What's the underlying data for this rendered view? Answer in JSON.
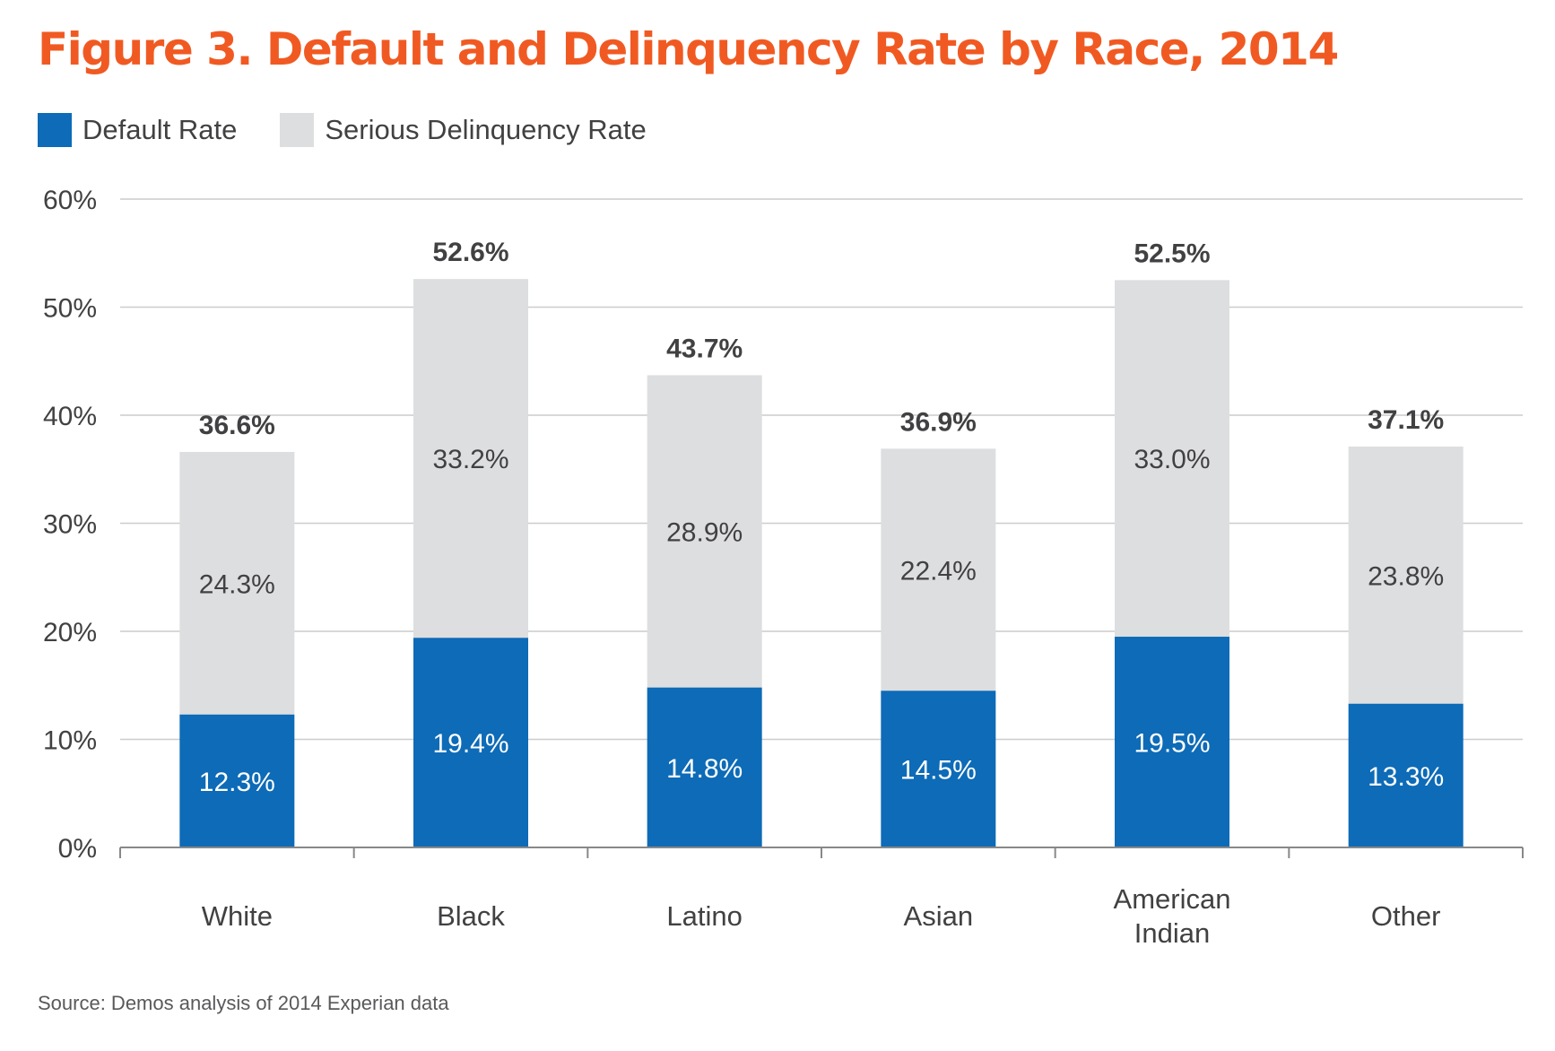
{
  "title": "Figure 3. Default and Delinquency Rate by Race, 2014",
  "source": "Source: Demos analysis of 2014 Experian data",
  "colors": {
    "title": "#F05A22",
    "default": "#0D6BB7",
    "delinquency": "#DDDEDF",
    "grid": "#CCCCCC",
    "axis": "#888888",
    "text": "#414042"
  },
  "legend": [
    {
      "label": "Default Rate",
      "color": "#0D6BB7"
    },
    {
      "label": "Serious Delinquency Rate",
      "color": "#DDDEDF"
    }
  ],
  "chart_data": {
    "type": "bar",
    "stacked": true,
    "title": "Figure 3. Default and Delinquency Rate by Race, 2014",
    "categories": [
      "White",
      "Black",
      "Latino",
      "Asian",
      "American Indian",
      "Other"
    ],
    "category_labels": [
      [
        "White"
      ],
      [
        "Black"
      ],
      [
        "Latino"
      ],
      [
        "Asian"
      ],
      [
        "American",
        "Indian"
      ],
      [
        "Other"
      ]
    ],
    "series": [
      {
        "name": "Default Rate",
        "values": [
          12.3,
          19.4,
          14.8,
          14.5,
          19.5,
          13.3
        ],
        "labels": [
          "12.3%",
          "19.4%",
          "14.8%",
          "14.5%",
          "19.5%",
          "13.3%"
        ]
      },
      {
        "name": "Serious Delinquency Rate",
        "values": [
          24.3,
          33.2,
          28.9,
          22.4,
          33.0,
          23.8
        ],
        "labels": [
          "24.3%",
          "33.2%",
          "28.9%",
          "22.4%",
          "33.0%",
          "23.8%"
        ]
      }
    ],
    "totals": [
      36.6,
      52.6,
      43.7,
      36.9,
      52.5,
      37.1
    ],
    "total_labels": [
      "36.6%",
      "52.6%",
      "43.7%",
      "36.9%",
      "52.5%",
      "37.1%"
    ],
    "ylim": [
      0,
      60
    ],
    "yticks": [
      0,
      10,
      20,
      30,
      40,
      50,
      60
    ],
    "ytick_labels": [
      "0%",
      "10%",
      "20%",
      "30%",
      "40%",
      "50%",
      "60%"
    ],
    "xlabel": "",
    "ylabel": "",
    "grid": true,
    "legend_position": "top-left"
  }
}
